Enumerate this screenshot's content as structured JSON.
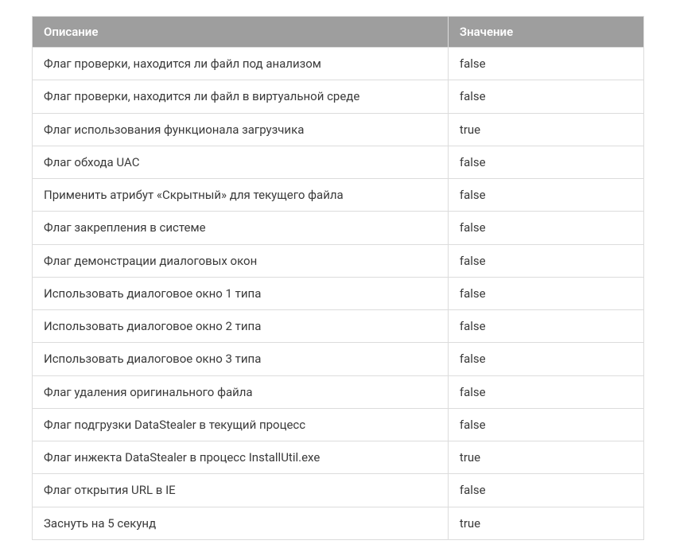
{
  "table": {
    "header_bg": "#9e9e9e",
    "header_fg": "#ffffff",
    "border_color": "#dcdcdc",
    "text_color": "#3a3a3a",
    "font_size": 15,
    "columns": [
      {
        "label": "Описание",
        "width": "68%"
      },
      {
        "label": "Значение",
        "width": "32%"
      }
    ],
    "rows": [
      {
        "desc": "Флаг проверки, находится ли файл под анализом",
        "val": "false"
      },
      {
        "desc": "Флаг проверки, находится ли файл в виртуальной среде",
        "val": "false"
      },
      {
        "desc": "Флаг использования функционала загрузчика",
        "val": "true"
      },
      {
        "desc": "Флаг обхода UAC",
        "val": "false"
      },
      {
        "desc": "Применить атрибут «Скрытный» для текущего файла",
        "val": "false"
      },
      {
        "desc": "Флаг закрепления в системе",
        "val": "false"
      },
      {
        "desc": "Флаг демонстрации диалоговых окон",
        "val": "false"
      },
      {
        "desc": "Использовать диалоговое окно 1 типа",
        "val": "false"
      },
      {
        "desc": "Использовать диалоговое окно 2 типа",
        "val": "false"
      },
      {
        "desc": "Использовать диалоговое окно 3 типа",
        "val": "false"
      },
      {
        "desc": "Флаг удаления оригинального файла",
        "val": "false"
      },
      {
        "desc": "Флаг подгрузки DataStealer в текущий процесс",
        "val": "false"
      },
      {
        "desc": "Флаг инжекта DataStealer в процесс InstallUtil.exe",
        "val": "true"
      },
      {
        "desc": "Флаг открытия URL в IE",
        "val": "false"
      },
      {
        "desc": "Заснуть на 5 секунд",
        "val": "true"
      }
    ]
  }
}
